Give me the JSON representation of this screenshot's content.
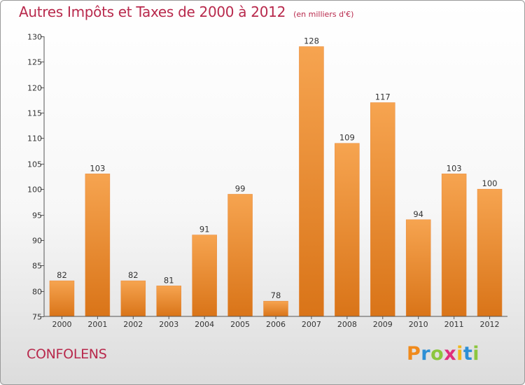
{
  "chart_data": {
    "type": "bar",
    "title": "Autres Impôts et Taxes de 2000 à 2012",
    "subtitle": "(en milliers d'€)",
    "categories": [
      "2000",
      "2001",
      "2002",
      "2003",
      "2004",
      "2005",
      "2006",
      "2007",
      "2008",
      "2009",
      "2010",
      "2011",
      "2012"
    ],
    "values": [
      82,
      103,
      82,
      81,
      91,
      99,
      78,
      128,
      109,
      117,
      94,
      103,
      100
    ],
    "ylim": [
      75,
      130
    ],
    "yticks": [
      75,
      80,
      85,
      90,
      95,
      100,
      105,
      110,
      115,
      120,
      125,
      130
    ],
    "grid": false,
    "bar_color": "#f0923a"
  },
  "commune": "CONFOLENS",
  "logo": {
    "text": "Proxiti",
    "letters": [
      {
        "char": "P",
        "color": "#f08a1c"
      },
      {
        "char": "r",
        "color": "#2d8fd5"
      },
      {
        "char": "o",
        "color": "#8cc63e"
      },
      {
        "char": "x",
        "color": "#e02f7c"
      },
      {
        "char": "i",
        "color": "#f2b81c"
      },
      {
        "char": "t",
        "color": "#2d8fd5"
      },
      {
        "char": "i",
        "color": "#8cc63e"
      }
    ]
  }
}
